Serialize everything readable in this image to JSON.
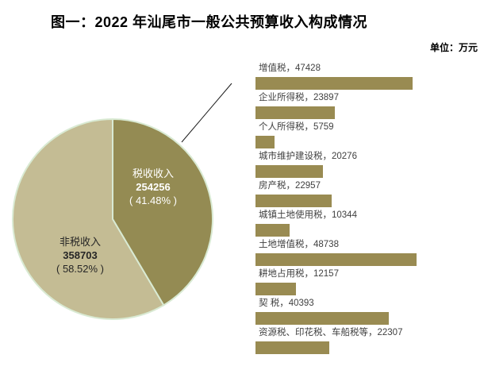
{
  "title": "图一：2022 年汕尾市一般公共预算收入构成情况",
  "unit_label": "单位：万元",
  "chart_data": [
    {
      "type": "pie",
      "name": "一般公共预算收入构成",
      "start_angle": 0,
      "direction": "clockwise",
      "border_color": "#D9EAD3",
      "slices": [
        {
          "label": "税收收入",
          "value": 254256,
          "pct": 41.48,
          "pct_display": "( 41.48% )",
          "color": "#948B53",
          "text_color": "#FFFFFF"
        },
        {
          "label": "非税收入",
          "value": 358703,
          "pct": 58.52,
          "pct_display": "( 58.52% )",
          "color": "#C4BC94",
          "text_color": "#262626"
        }
      ]
    },
    {
      "type": "bar",
      "orientation": "horizontal",
      "bar_color": "#998B52",
      "label_color": "#3F3F3F",
      "label_separator": "，",
      "categories": [
        "增值税",
        "企业所得税",
        "个人所得税",
        "城市维护建设税",
        "房产税",
        "城镇土地使用税",
        "土地增值税",
        "耕地占用税",
        "契 税",
        "资源税、印花税、车船税等"
      ],
      "values": [
        47428,
        23897,
        5759,
        20276,
        22957,
        10344,
        48738,
        12157,
        40393,
        22307
      ],
      "xlim": [
        0,
        48738
      ],
      "grid": false,
      "legend": "none"
    }
  ]
}
